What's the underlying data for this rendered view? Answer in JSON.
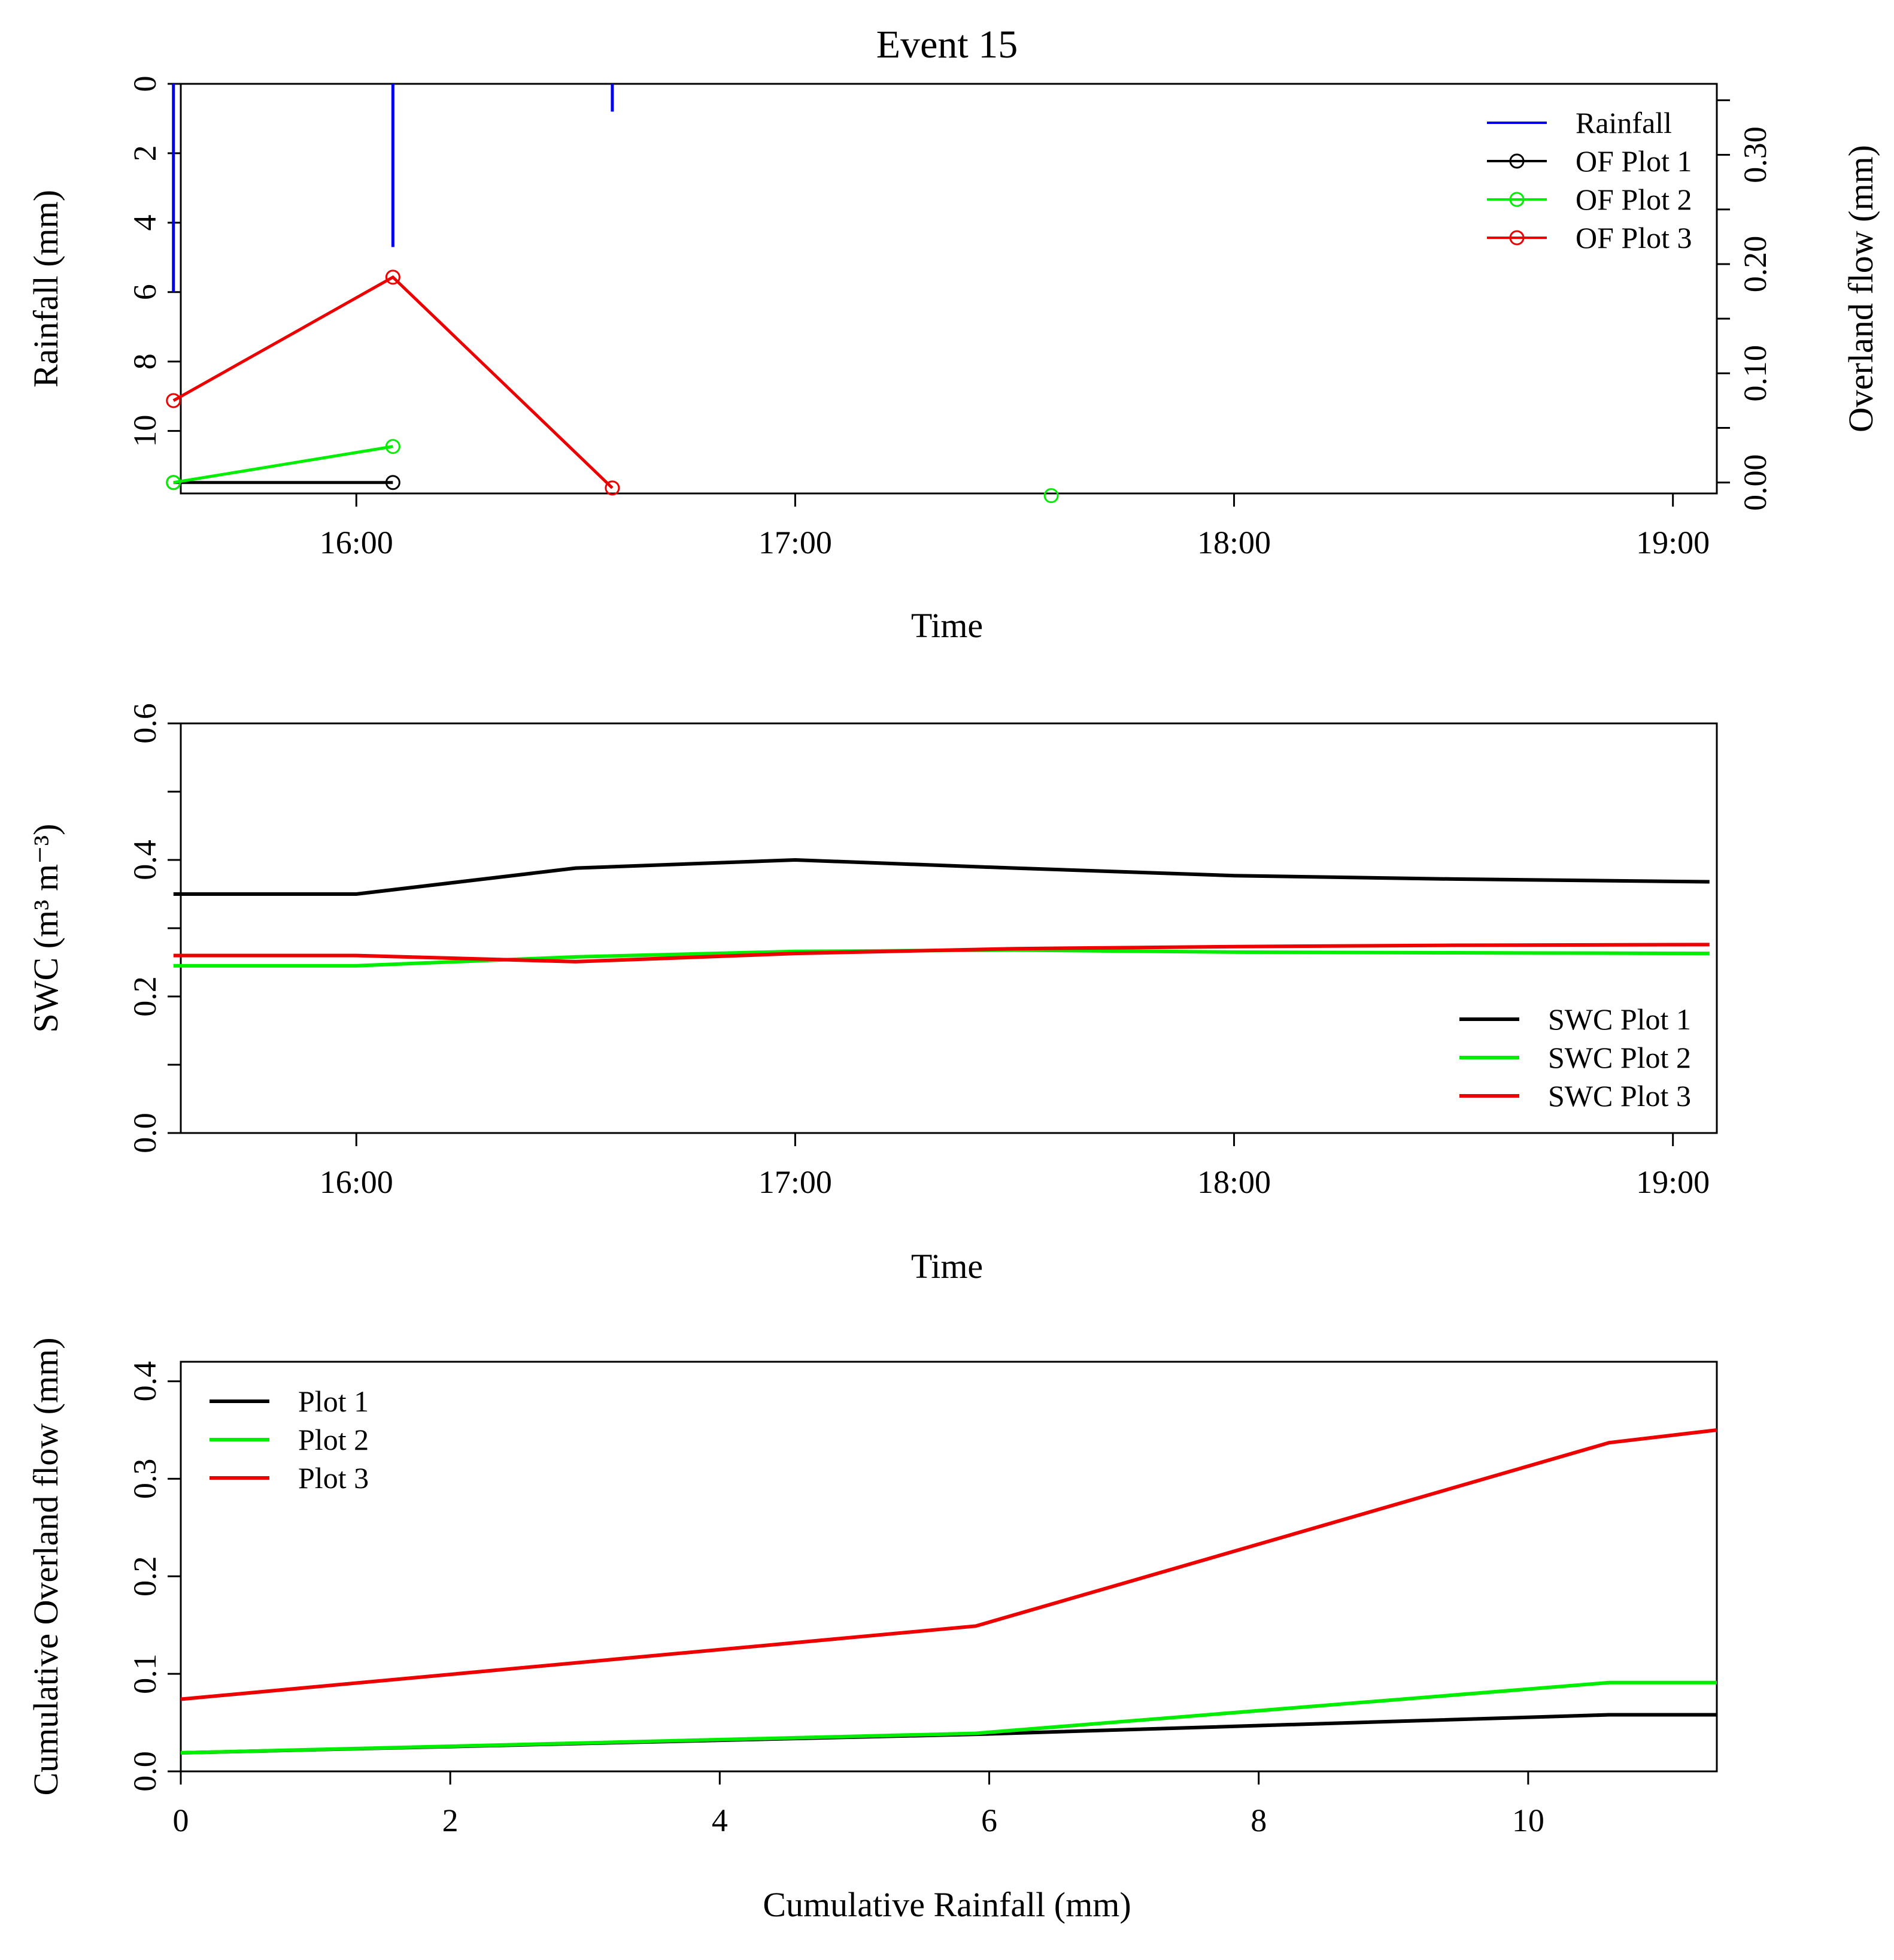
{
  "chart_data": [
    {
      "id": "rainfall_overland",
      "type": "line",
      "title": "Event 15",
      "xlabel": "Time",
      "ylabel": "Rainfall (mm)",
      "y2label": "Overland flow (mm)",
      "x_ticks": [
        "16:00",
        "17:00",
        "18:00",
        "19:00"
      ],
      "y_ticks": [
        "0",
        "2",
        "4",
        "6",
        "8",
        "10"
      ],
      "y2_ticks": [
        "0.00",
        "0.10",
        "0.20",
        "0.30"
      ],
      "ylim": [
        0,
        11.8
      ],
      "ylim_reversed": true,
      "y2lim": [
        -0.01,
        0.365
      ],
      "xlim_hours": [
        15.6,
        19.1
      ],
      "legend_position": "top-right",
      "rainfall": {
        "name": "Rainfall",
        "color": "#0000ee",
        "bars": [
          {
            "time": "15:35",
            "value": 6.0
          },
          {
            "time": "16:05",
            "value": 4.7
          },
          {
            "time": "16:35",
            "value": 0.8
          }
        ]
      },
      "series": [
        {
          "name": "OF Plot 1",
          "color": "#000000",
          "points": [
            {
              "time": "15:35",
              "value": 0.0
            },
            {
              "time": "16:05",
              "value": 0.0
            }
          ]
        },
        {
          "name": "OF Plot 2",
          "color": "#00ee00",
          "points": [
            {
              "time": "15:35",
              "value": 0.0
            },
            {
              "time": "16:05",
              "value": 0.033
            },
            {
              "time": "17:35",
              "value": -0.012
            }
          ]
        },
        {
          "name": "OF Plot 3",
          "color": "#ee0000",
          "points": [
            {
              "time": "15:35",
              "value": 0.075
            },
            {
              "time": "16:05",
              "value": 0.188
            },
            {
              "time": "16:35",
              "value": -0.005
            }
          ]
        }
      ]
    },
    {
      "id": "swc",
      "type": "line",
      "xlabel": "Time",
      "ylabel": "SWC (m³ m⁻³)",
      "x_ticks": [
        "16:00",
        "17:00",
        "18:00",
        "19:00"
      ],
      "y_ticks": [
        "0.0",
        "0.2",
        "0.4",
        "0.6"
      ],
      "ylim": [
        0,
        0.6
      ],
      "xlim_hours": [
        15.6,
        19.1
      ],
      "legend_position": "bottom-right",
      "series": [
        {
          "name": "SWC Plot 1",
          "color": "#000000",
          "points": [
            {
              "time": "15:35",
              "value": 0.35
            },
            {
              "time": "16:00",
              "value": 0.35
            },
            {
              "time": "16:30",
              "value": 0.388
            },
            {
              "time": "17:00",
              "value": 0.4
            },
            {
              "time": "17:30",
              "value": 0.388
            },
            {
              "time": "18:00",
              "value": 0.377
            },
            {
              "time": "18:30",
              "value": 0.372
            },
            {
              "time": "19:05",
              "value": 0.368
            }
          ]
        },
        {
          "name": "SWC Plot 2",
          "color": "#00ee00",
          "points": [
            {
              "time": "15:35",
              "value": 0.245
            },
            {
              "time": "16:00",
              "value": 0.245
            },
            {
              "time": "16:30",
              "value": 0.258
            },
            {
              "time": "17:00",
              "value": 0.266
            },
            {
              "time": "17:30",
              "value": 0.268
            },
            {
              "time": "18:00",
              "value": 0.265
            },
            {
              "time": "18:30",
              "value": 0.264
            },
            {
              "time": "19:05",
              "value": 0.263
            }
          ]
        },
        {
          "name": "SWC Plot 3",
          "color": "#ee0000",
          "points": [
            {
              "time": "15:35",
              "value": 0.26
            },
            {
              "time": "16:00",
              "value": 0.26
            },
            {
              "time": "16:30",
              "value": 0.251
            },
            {
              "time": "17:00",
              "value": 0.263
            },
            {
              "time": "17:30",
              "value": 0.27
            },
            {
              "time": "18:00",
              "value": 0.273
            },
            {
              "time": "18:30",
              "value": 0.275
            },
            {
              "time": "19:05",
              "value": 0.276
            }
          ]
        }
      ]
    },
    {
      "id": "cumulative",
      "type": "line",
      "xlabel": "Cumulative Rainfall (mm)",
      "ylabel": "Cumulative Overland flow (mm)",
      "x_ticks": [
        "0",
        "2",
        "4",
        "6",
        "8",
        "10"
      ],
      "y_ticks": [
        "0.0",
        "0.1",
        "0.2",
        "0.3",
        "0.4"
      ],
      "xlim": [
        0,
        11.4
      ],
      "ylim": [
        0,
        0.42
      ],
      "legend_position": "top-left",
      "series": [
        {
          "name": "Plot 1",
          "color": "#000000",
          "x": [
            0,
            5.9,
            10.6,
            11.4
          ],
          "y": [
            0.019,
            0.038,
            0.058,
            0.058
          ]
        },
        {
          "name": "Plot 2",
          "color": "#00ee00",
          "x": [
            0,
            5.9,
            10.6,
            11.4
          ],
          "y": [
            0.019,
            0.039,
            0.091,
            0.091
          ]
        },
        {
          "name": "Plot 3",
          "color": "#ee0000",
          "x": [
            0,
            5.9,
            10.6,
            11.4
          ],
          "y": [
            0.074,
            0.149,
            0.337,
            0.35
          ]
        }
      ]
    }
  ]
}
